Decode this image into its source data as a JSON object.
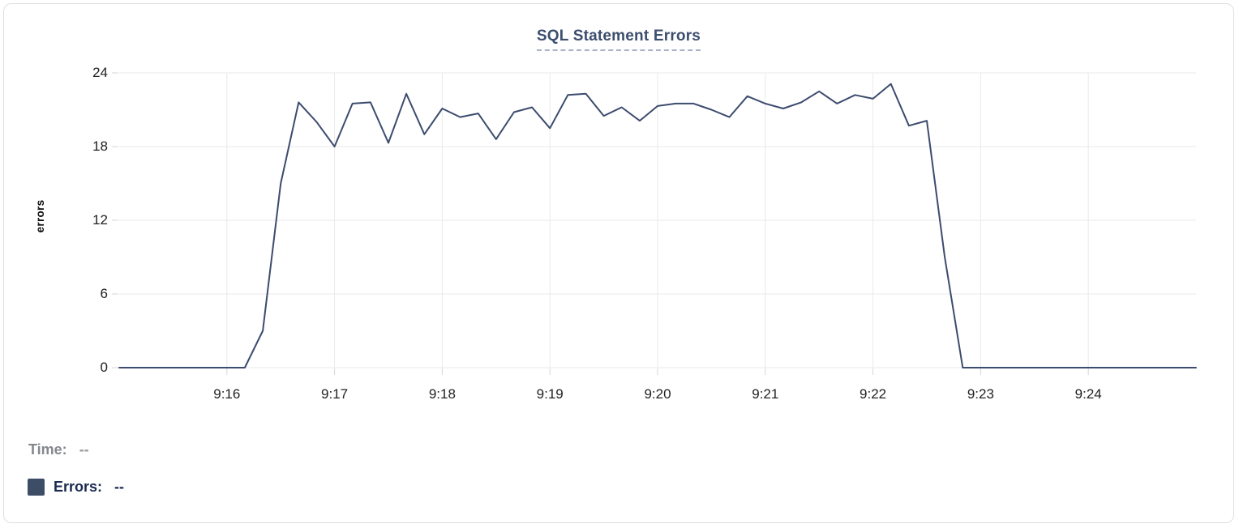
{
  "chart_data": {
    "type": "line",
    "title": "SQL Statement Errors",
    "xlabel": "",
    "ylabel": "errors",
    "ylim": [
      0,
      24
    ],
    "y_ticks": [
      0,
      6,
      12,
      18,
      24
    ],
    "x_start": "9:15:00",
    "x_end": "9:25:00",
    "x_total_seconds": 600,
    "interval_seconds": 10,
    "x_ticks": [
      {
        "label": "9:16",
        "offset_s": 60
      },
      {
        "label": "9:17",
        "offset_s": 120
      },
      {
        "label": "9:18",
        "offset_s": 180
      },
      {
        "label": "9:19",
        "offset_s": 240
      },
      {
        "label": "9:20",
        "offset_s": 300
      },
      {
        "label": "9:21",
        "offset_s": 360
      },
      {
        "label": "9:22",
        "offset_s": 420
      },
      {
        "label": "9:23",
        "offset_s": 480
      },
      {
        "label": "9:24",
        "offset_s": 540
      }
    ],
    "grid": true,
    "legend_position": "bottom-left",
    "series": [
      {
        "name": "Errors",
        "color": "#3c4b6e",
        "values": [
          0,
          0,
          0,
          0,
          0,
          0,
          0,
          0,
          3,
          15,
          21.6,
          20,
          18,
          21.5,
          21.6,
          18.3,
          22.3,
          19,
          21.1,
          20.4,
          20.7,
          18.6,
          20.8,
          21.2,
          19.5,
          22.2,
          22.3,
          20.5,
          21.2,
          20.1,
          21.3,
          21.5,
          21.5,
          21,
          20.4,
          22.1,
          21.5,
          21.1,
          21.6,
          22.5,
          21.5,
          22.2,
          21.9,
          23.1,
          19.7,
          20.1,
          9,
          0,
          0,
          0,
          0,
          0,
          0,
          0,
          0,
          0,
          0,
          0,
          0,
          0,
          0
        ]
      }
    ]
  },
  "legend": {
    "time_label": "Time:",
    "time_value": "--",
    "errors_label": "Errors:",
    "errors_value": "--",
    "swatch_color": "#3e4d66"
  },
  "colors": {
    "line": "#3c4b6e",
    "grid": "#eaeaea",
    "tick": "#d6d6d6",
    "title": "#3c4e6e",
    "title_dash": "#a7b1c7",
    "axis_text": "#222222",
    "card_border": "#dcdfe3"
  }
}
